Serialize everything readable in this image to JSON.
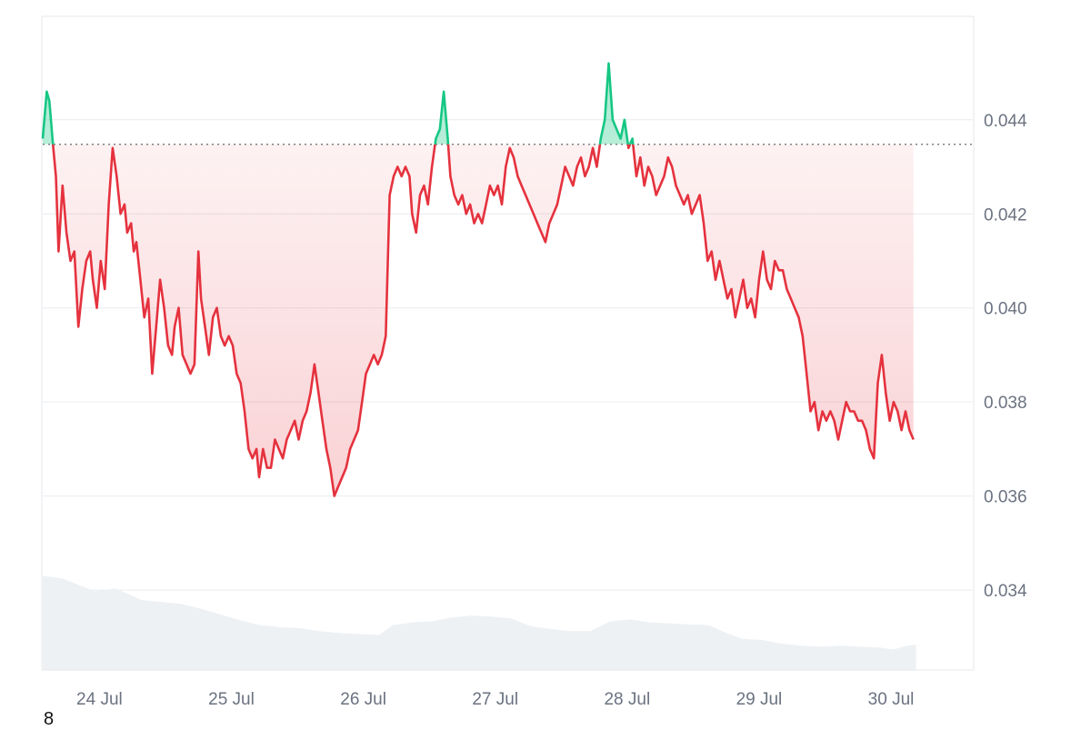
{
  "chart_data": {
    "type": "line",
    "baseline": 0.04348,
    "ylim": [
      0.0323,
      0.0462
    ],
    "xlim": [
      0.0,
      7.05
    ],
    "y_ticks": [
      {
        "value": 0.034,
        "label": "0.034"
      },
      {
        "value": 0.036,
        "label": "0.036"
      },
      {
        "value": 0.038,
        "label": "0.038"
      },
      {
        "value": 0.04,
        "label": "0.040"
      },
      {
        "value": 0.042,
        "label": "0.042"
      },
      {
        "value": 0.044,
        "label": "0.044"
      }
    ],
    "x_ticks": [
      {
        "value": 0.43,
        "label": "24 Jul"
      },
      {
        "value": 1.43,
        "label": "25 Jul"
      },
      {
        "value": 2.43,
        "label": "26 Jul"
      },
      {
        "value": 3.43,
        "label": "27 Jul"
      },
      {
        "value": 4.43,
        "label": "28 Jul"
      },
      {
        "value": 5.43,
        "label": "29 Jul"
      },
      {
        "value": 6.43,
        "label": "30 Jul"
      }
    ],
    "series": [
      {
        "points": [
          [
            0.0,
            0.0436
          ],
          [
            0.03,
            0.0446
          ],
          [
            0.05,
            0.0444
          ],
          [
            0.08,
            0.0434
          ],
          [
            0.1,
            0.0428
          ],
          [
            0.12,
            0.0412
          ],
          [
            0.15,
            0.0426
          ],
          [
            0.18,
            0.0416
          ],
          [
            0.21,
            0.041
          ],
          [
            0.24,
            0.0412
          ],
          [
            0.27,
            0.0396
          ],
          [
            0.3,
            0.0404
          ],
          [
            0.33,
            0.041
          ],
          [
            0.36,
            0.0412
          ],
          [
            0.38,
            0.0406
          ],
          [
            0.41,
            0.04
          ],
          [
            0.44,
            0.041
          ],
          [
            0.47,
            0.0404
          ],
          [
            0.5,
            0.0422
          ],
          [
            0.53,
            0.0434
          ],
          [
            0.56,
            0.0428
          ],
          [
            0.59,
            0.042
          ],
          [
            0.62,
            0.0422
          ],
          [
            0.64,
            0.0416
          ],
          [
            0.67,
            0.0418
          ],
          [
            0.69,
            0.0412
          ],
          [
            0.71,
            0.0414
          ],
          [
            0.74,
            0.0406
          ],
          [
            0.77,
            0.0398
          ],
          [
            0.8,
            0.0402
          ],
          [
            0.83,
            0.0386
          ],
          [
            0.86,
            0.0396
          ],
          [
            0.89,
            0.0406
          ],
          [
            0.92,
            0.04
          ],
          [
            0.95,
            0.0392
          ],
          [
            0.98,
            0.039
          ],
          [
            1.0,
            0.0396
          ],
          [
            1.03,
            0.04
          ],
          [
            1.06,
            0.039
          ],
          [
            1.09,
            0.0388
          ],
          [
            1.12,
            0.0386
          ],
          [
            1.15,
            0.0388
          ],
          [
            1.18,
            0.0412
          ],
          [
            1.2,
            0.0402
          ],
          [
            1.23,
            0.0396
          ],
          [
            1.26,
            0.039
          ],
          [
            1.29,
            0.0398
          ],
          [
            1.32,
            0.04
          ],
          [
            1.35,
            0.0394
          ],
          [
            1.38,
            0.0392
          ],
          [
            1.41,
            0.0394
          ],
          [
            1.44,
            0.0392
          ],
          [
            1.47,
            0.0386
          ],
          [
            1.5,
            0.0384
          ],
          [
            1.53,
            0.0378
          ],
          [
            1.56,
            0.037
          ],
          [
            1.59,
            0.0368
          ],
          [
            1.62,
            0.037
          ],
          [
            1.64,
            0.0364
          ],
          [
            1.67,
            0.037
          ],
          [
            1.7,
            0.0366
          ],
          [
            1.73,
            0.0366
          ],
          [
            1.76,
            0.0372
          ],
          [
            1.79,
            0.037
          ],
          [
            1.82,
            0.0368
          ],
          [
            1.85,
            0.0372
          ],
          [
            1.88,
            0.0374
          ],
          [
            1.91,
            0.0376
          ],
          [
            1.94,
            0.0372
          ],
          [
            1.97,
            0.0376
          ],
          [
            2.0,
            0.0378
          ],
          [
            2.03,
            0.0382
          ],
          [
            2.06,
            0.0388
          ],
          [
            2.09,
            0.0382
          ],
          [
            2.12,
            0.0376
          ],
          [
            2.15,
            0.037
          ],
          [
            2.18,
            0.0366
          ],
          [
            2.21,
            0.036
          ],
          [
            2.24,
            0.0362
          ],
          [
            2.27,
            0.0364
          ],
          [
            2.3,
            0.0366
          ],
          [
            2.33,
            0.037
          ],
          [
            2.36,
            0.0372
          ],
          [
            2.39,
            0.0374
          ],
          [
            2.42,
            0.038
          ],
          [
            2.45,
            0.0386
          ],
          [
            2.48,
            0.0388
          ],
          [
            2.51,
            0.039
          ],
          [
            2.54,
            0.0388
          ],
          [
            2.57,
            0.039
          ],
          [
            2.6,
            0.0394
          ],
          [
            2.63,
            0.0424
          ],
          [
            2.66,
            0.0428
          ],
          [
            2.69,
            0.043
          ],
          [
            2.72,
            0.0428
          ],
          [
            2.75,
            0.043
          ],
          [
            2.78,
            0.0428
          ],
          [
            2.8,
            0.042
          ],
          [
            2.83,
            0.0416
          ],
          [
            2.86,
            0.0424
          ],
          [
            2.89,
            0.0426
          ],
          [
            2.92,
            0.0422
          ],
          [
            2.95,
            0.043
          ],
          [
            2.98,
            0.0436
          ],
          [
            3.01,
            0.0438
          ],
          [
            3.04,
            0.0446
          ],
          [
            3.07,
            0.0436
          ],
          [
            3.09,
            0.0428
          ],
          [
            3.12,
            0.0424
          ],
          [
            3.15,
            0.0422
          ],
          [
            3.18,
            0.0424
          ],
          [
            3.21,
            0.042
          ],
          [
            3.24,
            0.0422
          ],
          [
            3.27,
            0.0418
          ],
          [
            3.3,
            0.042
          ],
          [
            3.33,
            0.0418
          ],
          [
            3.36,
            0.0422
          ],
          [
            3.39,
            0.0426
          ],
          [
            3.42,
            0.0424
          ],
          [
            3.45,
            0.0426
          ],
          [
            3.48,
            0.0422
          ],
          [
            3.51,
            0.043
          ],
          [
            3.54,
            0.0434
          ],
          [
            3.57,
            0.0432
          ],
          [
            3.6,
            0.0428
          ],
          [
            3.63,
            0.0426
          ],
          [
            3.66,
            0.0424
          ],
          [
            3.69,
            0.0422
          ],
          [
            3.72,
            0.042
          ],
          [
            3.75,
            0.0418
          ],
          [
            3.78,
            0.0416
          ],
          [
            3.81,
            0.0414
          ],
          [
            3.84,
            0.0418
          ],
          [
            3.87,
            0.042
          ],
          [
            3.9,
            0.0422
          ],
          [
            3.93,
            0.0426
          ],
          [
            3.96,
            0.043
          ],
          [
            3.99,
            0.0428
          ],
          [
            4.02,
            0.0426
          ],
          [
            4.05,
            0.043
          ],
          [
            4.08,
            0.0432
          ],
          [
            4.11,
            0.0428
          ],
          [
            4.14,
            0.043
          ],
          [
            4.17,
            0.0434
          ],
          [
            4.2,
            0.043
          ],
          [
            4.23,
            0.0436
          ],
          [
            4.26,
            0.044
          ],
          [
            4.29,
            0.0452
          ],
          [
            4.32,
            0.044
          ],
          [
            4.35,
            0.0438
          ],
          [
            4.38,
            0.0436
          ],
          [
            4.41,
            0.044
          ],
          [
            4.44,
            0.0434
          ],
          [
            4.47,
            0.0436
          ],
          [
            4.5,
            0.0428
          ],
          [
            4.53,
            0.0432
          ],
          [
            4.56,
            0.0426
          ],
          [
            4.59,
            0.043
          ],
          [
            4.62,
            0.0428
          ],
          [
            4.65,
            0.0424
          ],
          [
            4.68,
            0.0426
          ],
          [
            4.71,
            0.0428
          ],
          [
            4.74,
            0.0432
          ],
          [
            4.77,
            0.043
          ],
          [
            4.8,
            0.0426
          ],
          [
            4.83,
            0.0424
          ],
          [
            4.86,
            0.0422
          ],
          [
            4.89,
            0.0424
          ],
          [
            4.92,
            0.042
          ],
          [
            4.95,
            0.0422
          ],
          [
            4.98,
            0.0424
          ],
          [
            5.01,
            0.0418
          ],
          [
            5.04,
            0.041
          ],
          [
            5.07,
            0.0412
          ],
          [
            5.1,
            0.0406
          ],
          [
            5.13,
            0.041
          ],
          [
            5.16,
            0.0406
          ],
          [
            5.19,
            0.0402
          ],
          [
            5.22,
            0.0404
          ],
          [
            5.25,
            0.0398
          ],
          [
            5.28,
            0.0402
          ],
          [
            5.31,
            0.0406
          ],
          [
            5.34,
            0.04
          ],
          [
            5.37,
            0.0402
          ],
          [
            5.4,
            0.0398
          ],
          [
            5.43,
            0.0406
          ],
          [
            5.46,
            0.0412
          ],
          [
            5.49,
            0.0406
          ],
          [
            5.52,
            0.0404
          ],
          [
            5.55,
            0.041
          ],
          [
            5.58,
            0.0408
          ],
          [
            5.61,
            0.0408
          ],
          [
            5.64,
            0.0404
          ],
          [
            5.67,
            0.0402
          ],
          [
            5.7,
            0.04
          ],
          [
            5.73,
            0.0398
          ],
          [
            5.76,
            0.0394
          ],
          [
            5.79,
            0.0386
          ],
          [
            5.82,
            0.0378
          ],
          [
            5.85,
            0.038
          ],
          [
            5.88,
            0.0374
          ],
          [
            5.91,
            0.0378
          ],
          [
            5.94,
            0.0376
          ],
          [
            5.97,
            0.0378
          ],
          [
            6.0,
            0.0376
          ],
          [
            6.03,
            0.0372
          ],
          [
            6.06,
            0.0376
          ],
          [
            6.09,
            0.038
          ],
          [
            6.12,
            0.0378
          ],
          [
            6.15,
            0.0378
          ],
          [
            6.18,
            0.0376
          ],
          [
            6.21,
            0.0376
          ],
          [
            6.24,
            0.0374
          ],
          [
            6.27,
            0.037
          ],
          [
            6.3,
            0.0368
          ],
          [
            6.33,
            0.0384
          ],
          [
            6.36,
            0.039
          ],
          [
            6.39,
            0.0382
          ],
          [
            6.42,
            0.0376
          ],
          [
            6.45,
            0.038
          ],
          [
            6.48,
            0.0378
          ],
          [
            6.51,
            0.0374
          ],
          [
            6.54,
            0.0378
          ],
          [
            6.57,
            0.0374
          ],
          [
            6.6,
            0.0372
          ]
        ]
      }
    ],
    "volume": {
      "max": 1.0,
      "points": [
        [
          0.0,
          0.97
        ],
        [
          0.15,
          0.94
        ],
        [
          0.3,
          0.86
        ],
        [
          0.4,
          0.81
        ],
        [
          0.55,
          0.84
        ],
        [
          0.65,
          0.78
        ],
        [
          0.75,
          0.72
        ],
        [
          0.9,
          0.7
        ],
        [
          1.05,
          0.68
        ],
        [
          1.2,
          0.63
        ],
        [
          1.35,
          0.57
        ],
        [
          1.5,
          0.51
        ],
        [
          1.65,
          0.46
        ],
        [
          1.8,
          0.44
        ],
        [
          1.95,
          0.43
        ],
        [
          2.1,
          0.4
        ],
        [
          2.25,
          0.38
        ],
        [
          2.4,
          0.37
        ],
        [
          2.55,
          0.36
        ],
        [
          2.65,
          0.46
        ],
        [
          2.8,
          0.49
        ],
        [
          2.95,
          0.5
        ],
        [
          3.1,
          0.54
        ],
        [
          3.25,
          0.56
        ],
        [
          3.4,
          0.55
        ],
        [
          3.55,
          0.53
        ],
        [
          3.7,
          0.45
        ],
        [
          3.85,
          0.42
        ],
        [
          4.0,
          0.4
        ],
        [
          4.15,
          0.4
        ],
        [
          4.3,
          0.5
        ],
        [
          4.45,
          0.52
        ],
        [
          4.6,
          0.49
        ],
        [
          4.75,
          0.48
        ],
        [
          4.9,
          0.47
        ],
        [
          5.05,
          0.46
        ],
        [
          5.15,
          0.4
        ],
        [
          5.3,
          0.32
        ],
        [
          5.45,
          0.31
        ],
        [
          5.6,
          0.27
        ],
        [
          5.75,
          0.25
        ],
        [
          5.9,
          0.24
        ],
        [
          6.05,
          0.25
        ],
        [
          6.2,
          0.24
        ],
        [
          6.35,
          0.23
        ],
        [
          6.45,
          0.21
        ],
        [
          6.55,
          0.25
        ],
        [
          6.62,
          0.26
        ]
      ]
    },
    "colors": {
      "down": "#e5323e",
      "up": "#16c784",
      "down_fill": "#e5323e",
      "up_fill": "#16c784",
      "grid": "#e9ecef",
      "volume": "#eef1f4",
      "baseline": "#7c8086"
    }
  },
  "corner_label": "8"
}
